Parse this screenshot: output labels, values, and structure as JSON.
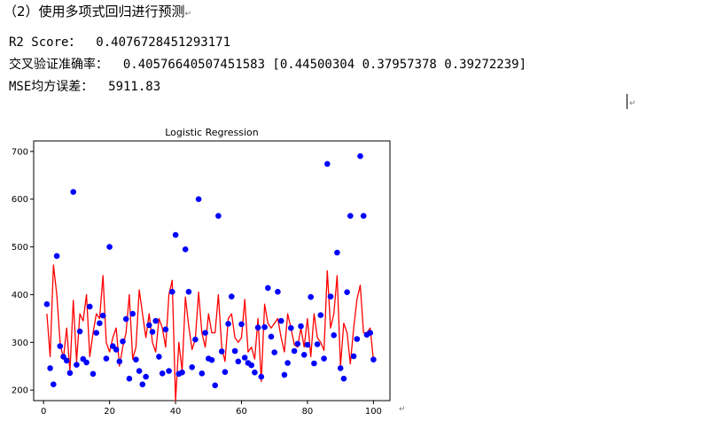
{
  "document": {
    "heading": "（2）使用多项式回归进行预测",
    "paragraph_mark": "↵",
    "lines": {
      "r2": "R2 Score：  0.4076728451293171",
      "cv": "交叉验证准确率：  0.40576640507451583 [0.44500304 0.37957378 0.39272239]",
      "mse": "MSE均方误差：  5911.83"
    }
  },
  "chart_data": {
    "type": "scatter",
    "title": "Logistic Regression",
    "xlabel": "",
    "ylabel": "",
    "xlim": [
      -3,
      105
    ],
    "ylim": [
      178,
      722
    ],
    "xticks": [
      0,
      20,
      40,
      60,
      80,
      100
    ],
    "yticks": [
      200,
      300,
      400,
      500,
      600,
      700
    ],
    "grid": false,
    "series": [
      {
        "kind": "scatter",
        "color": "#0000ff",
        "x": [
          1,
          2,
          3,
          4,
          5,
          6,
          7,
          8,
          9,
          10,
          11,
          12,
          13,
          14,
          15,
          16,
          17,
          18,
          19,
          20,
          21,
          22,
          23,
          24,
          25,
          26,
          27,
          28,
          29,
          30,
          31,
          32,
          33,
          34,
          35,
          36,
          37,
          38,
          39,
          40,
          41,
          42,
          43,
          44,
          45,
          46,
          47,
          48,
          49,
          50,
          51,
          52,
          53,
          54,
          55,
          56,
          57,
          58,
          59,
          60,
          61,
          62,
          63,
          64,
          65,
          66,
          67,
          68,
          69,
          70,
          71,
          72,
          73,
          74,
          75,
          76,
          77,
          78,
          79,
          80,
          81,
          82,
          83,
          84,
          85,
          86,
          87,
          88,
          89,
          90,
          91,
          92,
          93,
          94,
          95,
          96,
          97,
          98,
          99,
          100
        ],
        "y": [
          380,
          246,
          212,
          481,
          292,
          270,
          262,
          236,
          615,
          253,
          323,
          265,
          258,
          375,
          234,
          320,
          340,
          356,
          266,
          500,
          292,
          285,
          260,
          302,
          349,
          224,
          360,
          264,
          240,
          212,
          228,
          336,
          322,
          345,
          270,
          235,
          327,
          240,
          406,
          525,
          234,
          237,
          495,
          406,
          248,
          306,
          600,
          235,
          320,
          266,
          263,
          210,
          565,
          281,
          238,
          339,
          396,
          282,
          260,
          338,
          268,
          257,
          252,
          237,
          331,
          228,
          332,
          414,
          312,
          279,
          406,
          345,
          232,
          257,
          330,
          282,
          297,
          334,
          274,
          295,
          395,
          256,
          296,
          357,
          266,
          674,
          396,
          315,
          488,
          246,
          224,
          405,
          565,
          271,
          307,
          690,
          565,
          316,
          320,
          264
        ]
      },
      {
        "kind": "line",
        "color": "#ff0000",
        "x": [
          1,
          2,
          3,
          4,
          5,
          6,
          7,
          8,
          9,
          10,
          11,
          12,
          13,
          14,
          15,
          16,
          17,
          18,
          19,
          20,
          21,
          22,
          23,
          24,
          25,
          26,
          27,
          28,
          29,
          30,
          31,
          32,
          33,
          34,
          35,
          36,
          37,
          38,
          39,
          40,
          41,
          42,
          43,
          44,
          45,
          46,
          47,
          48,
          49,
          50,
          51,
          52,
          53,
          54,
          55,
          56,
          57,
          58,
          59,
          60,
          61,
          62,
          63,
          64,
          65,
          66,
          67,
          68,
          69,
          70,
          71,
          72,
          73,
          74,
          75,
          76,
          77,
          78,
          79,
          80,
          81,
          82,
          83,
          84,
          85,
          86,
          87,
          88,
          89,
          90,
          91,
          92,
          93,
          94,
          95,
          96,
          97,
          98,
          99,
          100
        ],
        "y": [
          360,
          270,
          462,
          400,
          300,
          265,
          330,
          240,
          388,
          260,
          360,
          345,
          400,
          270,
          320,
          360,
          350,
          440,
          300,
          280,
          310,
          330,
          250,
          290,
          320,
          400,
          265,
          290,
          410,
          360,
          310,
          360,
          300,
          280,
          350,
          330,
          290,
          400,
          430,
          178,
          300,
          240,
          395,
          335,
          285,
          307,
          405,
          320,
          290,
          360,
          320,
          320,
          400,
          290,
          260,
          350,
          360,
          310,
          300,
          310,
          390,
          280,
          290,
          265,
          350,
          218,
          380,
          340,
          330,
          340,
          350,
          310,
          280,
          360,
          330,
          295,
          290,
          330,
          290,
          350,
          270,
          360,
          310,
          300,
          283,
          450,
          330,
          360,
          440,
          250,
          340,
          320,
          255,
          330,
          390,
          420,
          320,
          320,
          330,
          262
        ]
      }
    ]
  }
}
